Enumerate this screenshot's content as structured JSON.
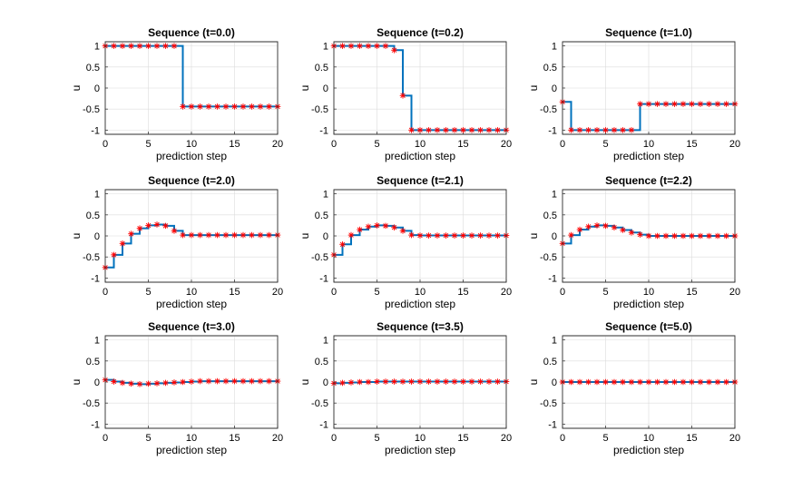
{
  "figure": {
    "background": "#ffffff"
  },
  "style": {
    "stair_color": "#0072BD",
    "marker_color": "#FF0000",
    "marker": "asterisk"
  },
  "chart_data": [
    {
      "type": "line",
      "title": "Sequence (t=0.0)",
      "xlabel": "prediction step",
      "ylabel": "u",
      "xlim": [
        0,
        20
      ],
      "ylim": [
        -1.1,
        1.1
      ],
      "xticks": [
        "0",
        "5",
        "10",
        "15",
        "20"
      ],
      "yticks": [
        "-1",
        "-0.5",
        "0",
        "0.5",
        "1"
      ],
      "grid": true,
      "x": [
        0,
        1,
        2,
        3,
        4,
        5,
        6,
        7,
        8,
        9,
        10,
        11,
        12,
        13,
        14,
        15,
        16,
        17,
        18,
        19,
        20
      ],
      "values": [
        1,
        1,
        1,
        1,
        1,
        1,
        1,
        1,
        1,
        -0.44,
        -0.44,
        -0.44,
        -0.44,
        -0.44,
        -0.44,
        -0.44,
        -0.44,
        -0.44,
        -0.44,
        -0.44,
        -0.44
      ]
    },
    {
      "type": "line",
      "title": "Sequence (t=0.2)",
      "xlabel": "prediction step",
      "ylabel": "u",
      "xlim": [
        0,
        20
      ],
      "ylim": [
        -1.1,
        1.1
      ],
      "xticks": [
        "0",
        "5",
        "10",
        "15",
        "20"
      ],
      "yticks": [
        "-1",
        "-0.5",
        "0",
        "0.5",
        "1"
      ],
      "grid": true,
      "x": [
        0,
        1,
        2,
        3,
        4,
        5,
        6,
        7,
        8,
        9,
        10,
        11,
        12,
        13,
        14,
        15,
        16,
        17,
        18,
        19,
        20
      ],
      "values": [
        1,
        1,
        1,
        1,
        1,
        1,
        1,
        0.9,
        -0.18,
        -1,
        -1,
        -1,
        -1,
        -1,
        -1,
        -1,
        -1,
        -1,
        -1,
        -1,
        -1
      ]
    },
    {
      "type": "line",
      "title": "Sequence (t=1.0)",
      "xlabel": "prediction step",
      "ylabel": "u",
      "xlim": [
        0,
        20
      ],
      "ylim": [
        -1.1,
        1.1
      ],
      "xticks": [
        "0",
        "5",
        "10",
        "15",
        "20"
      ],
      "yticks": [
        "-1",
        "-0.5",
        "0",
        "0.5",
        "1"
      ],
      "grid": true,
      "x": [
        0,
        1,
        2,
        3,
        4,
        5,
        6,
        7,
        8,
        9,
        10,
        11,
        12,
        13,
        14,
        15,
        16,
        17,
        18,
        19,
        20
      ],
      "values": [
        -0.33,
        -1,
        -1,
        -1,
        -1,
        -1,
        -1,
        -1,
        -1,
        -0.38,
        -0.38,
        -0.38,
        -0.38,
        -0.38,
        -0.38,
        -0.38,
        -0.38,
        -0.38,
        -0.38,
        -0.38,
        -0.38
      ]
    },
    {
      "type": "line",
      "title": "Sequence (t=2.0)",
      "xlabel": "prediction step",
      "ylabel": "u",
      "xlim": [
        0,
        20
      ],
      "ylim": [
        -1.1,
        1.1
      ],
      "xticks": [
        "0",
        "5",
        "10",
        "15",
        "20"
      ],
      "yticks": [
        "-1",
        "-0.5",
        "0",
        "0.5",
        "1"
      ],
      "grid": true,
      "x": [
        0,
        1,
        2,
        3,
        4,
        5,
        6,
        7,
        8,
        9,
        10,
        11,
        12,
        13,
        14,
        15,
        16,
        17,
        18,
        19,
        20
      ],
      "values": [
        -0.75,
        -0.45,
        -0.18,
        0.05,
        0.18,
        0.25,
        0.27,
        0.24,
        0.12,
        0.02,
        0.02,
        0.02,
        0.02,
        0.02,
        0.02,
        0.02,
        0.02,
        0.02,
        0.02,
        0.02,
        0.02
      ]
    },
    {
      "type": "line",
      "title": "Sequence (t=2.1)",
      "xlabel": "prediction step",
      "ylabel": "u",
      "xlim": [
        0,
        20
      ],
      "ylim": [
        -1.1,
        1.1
      ],
      "xticks": [
        "0",
        "5",
        "10",
        "15",
        "20"
      ],
      "yticks": [
        "-1",
        "-0.5",
        "0",
        "0.5",
        "1"
      ],
      "grid": true,
      "x": [
        0,
        1,
        2,
        3,
        4,
        5,
        6,
        7,
        8,
        9,
        10,
        11,
        12,
        13,
        14,
        15,
        16,
        17,
        18,
        19,
        20
      ],
      "values": [
        -0.45,
        -0.2,
        0.02,
        0.15,
        0.22,
        0.25,
        0.24,
        0.2,
        0.12,
        0.02,
        0.01,
        0.01,
        0.01,
        0.01,
        0.01,
        0.01,
        0.01,
        0.01,
        0.01,
        0.01,
        0.01
      ]
    },
    {
      "type": "line",
      "title": "Sequence (t=2.2)",
      "xlabel": "prediction step",
      "ylabel": "u",
      "xlim": [
        0,
        20
      ],
      "ylim": [
        -1.1,
        1.1
      ],
      "xticks": [
        "0",
        "5",
        "10",
        "15",
        "20"
      ],
      "yticks": [
        "-1",
        "-0.5",
        "0",
        "0.5",
        "1"
      ],
      "grid": true,
      "x": [
        0,
        1,
        2,
        3,
        4,
        5,
        6,
        7,
        8,
        9,
        10,
        11,
        12,
        13,
        14,
        15,
        16,
        17,
        18,
        19,
        20
      ],
      "values": [
        -0.18,
        0.02,
        0.15,
        0.22,
        0.25,
        0.24,
        0.2,
        0.14,
        0.08,
        0.03,
        0.0,
        0.0,
        0.0,
        0.0,
        0.0,
        0.0,
        0.0,
        0.0,
        0.0,
        0.0,
        0.0
      ]
    },
    {
      "type": "line",
      "title": "Sequence (t=3.0)",
      "xlabel": "prediction step",
      "ylabel": "u",
      "xlim": [
        0,
        20
      ],
      "ylim": [
        -1.1,
        1.1
      ],
      "xticks": [
        "0",
        "5",
        "10",
        "15",
        "20"
      ],
      "yticks": [
        "-1",
        "-0.5",
        "0",
        "0.5",
        "1"
      ],
      "grid": true,
      "x": [
        0,
        1,
        2,
        3,
        4,
        5,
        6,
        7,
        8,
        9,
        10,
        11,
        12,
        13,
        14,
        15,
        16,
        17,
        18,
        19,
        20
      ],
      "values": [
        0.05,
        0.01,
        -0.02,
        -0.04,
        -0.05,
        -0.04,
        -0.03,
        -0.02,
        -0.01,
        0.0,
        0.01,
        0.02,
        0.02,
        0.02,
        0.02,
        0.02,
        0.02,
        0.02,
        0.02,
        0.02,
        0.02
      ]
    },
    {
      "type": "line",
      "title": "Sequence (t=3.5)",
      "xlabel": "prediction step",
      "ylabel": "u",
      "xlim": [
        0,
        20
      ],
      "ylim": [
        -1.1,
        1.1
      ],
      "xticks": [
        "0",
        "5",
        "10",
        "15",
        "20"
      ],
      "yticks": [
        "-1",
        "-0.5",
        "0",
        "0.5",
        "1"
      ],
      "grid": true,
      "x": [
        0,
        1,
        2,
        3,
        4,
        5,
        6,
        7,
        8,
        9,
        10,
        11,
        12,
        13,
        14,
        15,
        16,
        17,
        18,
        19,
        20
      ],
      "values": [
        -0.03,
        -0.02,
        -0.01,
        0.0,
        0.0,
        0.01,
        0.01,
        0.01,
        0.01,
        0.01,
        0.01,
        0.01,
        0.01,
        0.01,
        0.01,
        0.01,
        0.01,
        0.01,
        0.01,
        0.01,
        0.01
      ]
    },
    {
      "type": "line",
      "title": "Sequence (t=5.0)",
      "xlabel": "prediction step",
      "ylabel": "u",
      "xlim": [
        0,
        20
      ],
      "ylim": [
        -1.1,
        1.1
      ],
      "xticks": [
        "0",
        "5",
        "10",
        "15",
        "20"
      ],
      "yticks": [
        "-1",
        "-0.5",
        "0",
        "0.5",
        "1"
      ],
      "grid": true,
      "x": [
        0,
        1,
        2,
        3,
        4,
        5,
        6,
        7,
        8,
        9,
        10,
        11,
        12,
        13,
        14,
        15,
        16,
        17,
        18,
        19,
        20
      ],
      "values": [
        0,
        0,
        0,
        0,
        0,
        0,
        0,
        0,
        0,
        0,
        0,
        0,
        0,
        0,
        0,
        0,
        0,
        0,
        0,
        0,
        0
      ]
    }
  ]
}
